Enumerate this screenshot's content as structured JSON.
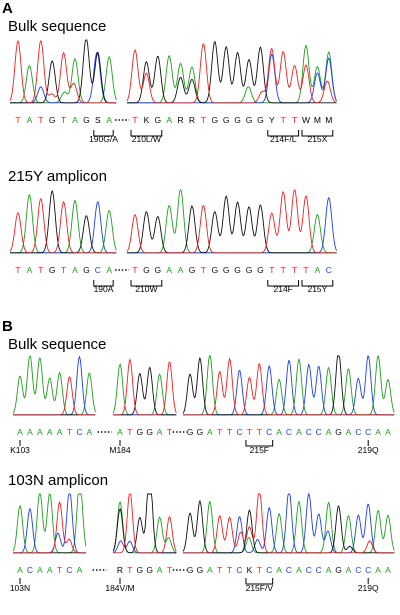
{
  "colors": {
    "A": "#1fa01f",
    "C": "#1f3ff0",
    "G": "#111111",
    "T": "#ee2222",
    "other": "#000000"
  },
  "panels": [
    {
      "letter": "A",
      "rows": [
        {
          "title": "Bulk sequence",
          "ambiguous": true,
          "segments": [
            {
              "bases": "TATGTAGSA"
            },
            {
              "bases": "TKGARRTGGGGGYTTWMM"
            }
          ],
          "annotations": [
            {
              "text": "190G/A",
              "seg": 0,
              "from": 7,
              "to": 8
            },
            {
              "text": "210L/W",
              "seg": 1,
              "from": 0,
              "to": 2
            },
            {
              "text": "214F/L",
              "seg": 1,
              "from": 12,
              "to": 14
            },
            {
              "text": "215X",
              "seg": 1,
              "from": 15,
              "to": 17
            }
          ]
        },
        {
          "title": "215Y amplicon",
          "ambiguous": false,
          "segments": [
            {
              "bases": "TATGTAGCA"
            },
            {
              "bases": "TGGAAGTGGGGGTTTTAC"
            }
          ],
          "annotations": [
            {
              "text": "190A",
              "seg": 0,
              "from": 7,
              "to": 8
            },
            {
              "text": "210W",
              "seg": 1,
              "from": 0,
              "to": 2
            },
            {
              "text": "214F",
              "seg": 1,
              "from": 12,
              "to": 14
            },
            {
              "text": "215Y",
              "seg": 1,
              "from": 15,
              "to": 17
            }
          ]
        }
      ]
    },
    {
      "letter": "B",
      "rows": [
        {
          "title": "Bulk sequence",
          "ambiguous": false,
          "segments": [
            {
              "bases": "AAAAATCA"
            },
            {
              "bases": "ATGGAT"
            },
            {
              "bases": "GGATTCTTCACACCAGACCAA"
            }
          ],
          "annotations": [
            {
              "text": "K103",
              "seg": 0,
              "from": 0,
              "to": 0,
              "tick": true
            },
            {
              "text": "M184",
              "seg": 1,
              "from": 0,
              "to": 0,
              "tick": true
            },
            {
              "text": "215F",
              "seg": 2,
              "from": 6,
              "to": 8
            },
            {
              "text": "219Q",
              "seg": 2,
              "from": 18,
              "to": 18,
              "tick": true
            }
          ]
        },
        {
          "title": "103N amplicon",
          "ambiguous": true,
          "segments": [
            {
              "bases": "ACAATCA"
            },
            {
              "bases": "RTGGAT"
            },
            {
              "bases": "GGATTCKTCACACCAGACCAA"
            }
          ],
          "annotations": [
            {
              "text": "103N",
              "seg": 0,
              "from": 0,
              "to": 0,
              "tick": true
            },
            {
              "text": "184V/M",
              "seg": 1,
              "from": 0,
              "to": 0,
              "tick": true
            },
            {
              "text": "215F/V",
              "seg": 2,
              "from": 6,
              "to": 8
            },
            {
              "text": "219Q",
              "seg": 2,
              "from": 18,
              "to": 18,
              "tick": true
            }
          ]
        }
      ]
    }
  ]
}
